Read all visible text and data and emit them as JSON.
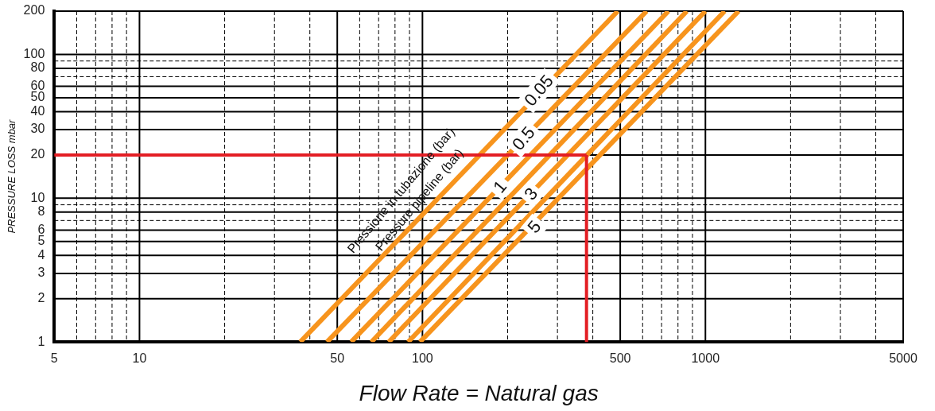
{
  "chart_data": {
    "type": "line",
    "xlabel": "Flow Rate = Natural gas",
    "ylabel": "PRESSURE LOSS mbar",
    "log": "xy",
    "marker": "none",
    "line_style": "solid",
    "legend": false,
    "grid": true,
    "xlim": [
      5,
      5000
    ],
    "ylim": [
      1,
      200
    ],
    "xticks": [
      5,
      {
        "value": 6,
        "label": null
      },
      {
        "value": 7,
        "label": null
      },
      {
        "value": 8,
        "label": null
      },
      {
        "value": 9,
        "label": null
      },
      10,
      {
        "value": 20,
        "label": null
      },
      {
        "value": 30,
        "label": null
      },
      {
        "value": 40,
        "label": null
      },
      50,
      {
        "value": 60,
        "label": null
      },
      {
        "value": 70,
        "label": null
      },
      {
        "value": 80,
        "label": null
      },
      {
        "value": 90,
        "label": null
      },
      100,
      {
        "value": 200,
        "label": null
      },
      {
        "value": 300,
        "label": null
      },
      {
        "value": 400,
        "label": null
      },
      500,
      {
        "value": 600,
        "label": null
      },
      {
        "value": 700,
        "label": null
      },
      {
        "value": 800,
        "label": null
      },
      {
        "value": 900,
        "label": null
      },
      1000,
      {
        "value": 2000,
        "label": null
      },
      {
        "value": 3000,
        "label": null
      },
      {
        "value": 4000,
        "label": null
      },
      5000
    ],
    "yticks": [
      1,
      2,
      3,
      4,
      5,
      6,
      {
        "value": 7,
        "label": null
      },
      8,
      {
        "value": 9,
        "label": null
      },
      10,
      20,
      30,
      40,
      50,
      60,
      {
        "value": 70,
        "label": null
      },
      80,
      {
        "value": 90,
        "label": null
      },
      100,
      200
    ],
    "series": [
      {
        "x": [
          37,
          490
        ],
        "values": [
          1,
          200
        ],
        "color": "#f7941d"
      },
      {
        "x": [
          46,
          620
        ],
        "values": [
          1,
          200
        ],
        "color": "#f7941d"
      },
      {
        "x": [
          56,
          740
        ],
        "values": [
          1,
          200
        ],
        "color": "#f7941d"
      },
      {
        "x": [
          66,
          860
        ],
        "values": [
          1,
          200
        ],
        "color": "#f7941d"
      },
      {
        "x": [
          76,
          1000
        ],
        "values": [
          1,
          200
        ],
        "color": "#f7941d"
      },
      {
        "x": [
          89,
          1170
        ],
        "values": [
          1,
          200
        ],
        "color": "#f7941d"
      },
      {
        "x": [
          98,
          1310
        ],
        "values": [
          1,
          200
        ],
        "color": "#f7941d"
      }
    ],
    "ref_lines": [
      {
        "axis": "y",
        "value": 20,
        "color": "#e31e24"
      },
      {
        "axis": "x",
        "value": 380,
        "color": "#e31e24"
      }
    ],
    "annotations": [
      "Pressione in tubazione (bar)",
      "Pressure pipeline (bar)",
      {
        "text": "0.05",
        "x": 258,
        "y": 56
      },
      {
        "text": "0.5",
        "x": 228,
        "y": 26
      },
      {
        "text": "1",
        "x": 188,
        "y": 12
      },
      {
        "text": "3",
        "x": 242,
        "y": 10.7
      },
      {
        "text": "5",
        "x": 249,
        "y": 6.3
      }
    ]
  }
}
